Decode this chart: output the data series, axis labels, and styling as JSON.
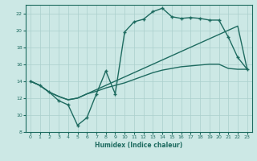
{
  "xlabel": "Humidex (Indice chaleur)",
  "bg_color": "#cce8e5",
  "grid_color": "#aacfcc",
  "line_color": "#1e6b60",
  "xlim": [
    -0.5,
    23.5
  ],
  "ylim": [
    8,
    23
  ],
  "xticks": [
    0,
    1,
    2,
    3,
    4,
    5,
    6,
    7,
    8,
    9,
    10,
    11,
    12,
    13,
    14,
    15,
    16,
    17,
    18,
    19,
    20,
    21,
    22,
    23
  ],
  "yticks": [
    8,
    10,
    12,
    14,
    16,
    18,
    20,
    22
  ],
  "line1_x": [
    0,
    1,
    2,
    3,
    4,
    5,
    6,
    7,
    8,
    9,
    10,
    11,
    12,
    13,
    14,
    15,
    16,
    17,
    18,
    19,
    20,
    21,
    22,
    23
  ],
  "line1_y": [
    14.0,
    13.5,
    12.7,
    11.7,
    11.2,
    8.8,
    9.7,
    12.5,
    15.2,
    12.5,
    19.8,
    21.0,
    21.3,
    22.2,
    22.6,
    21.6,
    21.4,
    21.5,
    21.4,
    21.2,
    21.2,
    19.2,
    16.8,
    15.4
  ],
  "line2_x": [
    0,
    1,
    2,
    3,
    4,
    5,
    6,
    7,
    8,
    9,
    10,
    11,
    12,
    13,
    14,
    15,
    16,
    17,
    18,
    19,
    20,
    21,
    22,
    23
  ],
  "line2_y": [
    14.0,
    13.5,
    12.7,
    12.2,
    11.8,
    12.0,
    12.5,
    13.0,
    13.5,
    14.0,
    14.5,
    15.0,
    15.5,
    16.0,
    16.5,
    17.0,
    17.5,
    18.0,
    18.5,
    19.0,
    19.5,
    20.0,
    20.5,
    15.4
  ],
  "line3_x": [
    0,
    1,
    2,
    3,
    4,
    5,
    6,
    7,
    8,
    9,
    10,
    11,
    12,
    13,
    14,
    15,
    16,
    17,
    18,
    19,
    20,
    21,
    22,
    23
  ],
  "line3_y": [
    14.0,
    13.5,
    12.7,
    12.2,
    11.8,
    12.0,
    12.5,
    12.8,
    13.2,
    13.5,
    13.8,
    14.2,
    14.6,
    15.0,
    15.3,
    15.5,
    15.7,
    15.8,
    15.9,
    16.0,
    16.0,
    15.5,
    15.4,
    15.4
  ]
}
